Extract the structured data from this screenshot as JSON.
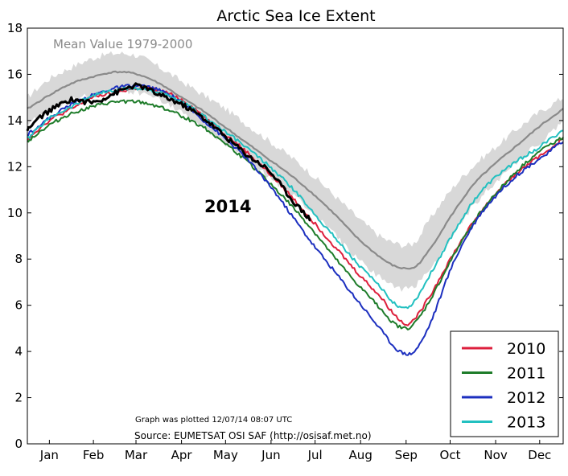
{
  "chart_data": {
    "type": "line",
    "title": "Arctic Sea Ice Extent",
    "xlabel": "",
    "ylabel": "",
    "xlim": [
      0,
      365
    ],
    "ylim": [
      0,
      18
    ],
    "yticks": [
      0,
      2,
      4,
      6,
      8,
      10,
      12,
      14,
      16,
      18
    ],
    "month_labels": [
      "Jan",
      "Feb",
      "Mar",
      "Apr",
      "May",
      "Jun",
      "Jul",
      "Aug",
      "Sep",
      "Oct",
      "Nov",
      "Dec"
    ],
    "month_label_days": [
      15,
      45,
      74,
      105,
      135,
      166,
      196,
      227,
      258,
      288,
      319,
      349
    ],
    "mean_label": "Mean Value 1979-2000",
    "mean": {
      "x": [
        0,
        15,
        30,
        45,
        60,
        75,
        90,
        105,
        120,
        135,
        150,
        165,
        180,
        195,
        210,
        225,
        240,
        250,
        258,
        265,
        275,
        290,
        305,
        320,
        335,
        350,
        365
      ],
      "y": [
        14.5,
        15.1,
        15.6,
        15.9,
        16.1,
        16.0,
        15.6,
        15.0,
        14.4,
        13.7,
        13.0,
        12.3,
        11.6,
        10.8,
        9.9,
        8.9,
        8.1,
        7.7,
        7.6,
        7.7,
        8.5,
        10.0,
        11.3,
        12.2,
        13.0,
        13.8,
        14.5
      ]
    },
    "mean_band": {
      "x": [
        0,
        15,
        30,
        45,
        60,
        75,
        90,
        105,
        120,
        135,
        150,
        165,
        180,
        195,
        210,
        225,
        240,
        250,
        258,
        265,
        275,
        290,
        305,
        320,
        335,
        350,
        365
      ],
      "upper": [
        15.0,
        15.8,
        16.3,
        16.7,
        16.9,
        16.8,
        16.3,
        15.7,
        15.1,
        14.5,
        13.8,
        13.1,
        12.4,
        11.6,
        10.7,
        9.8,
        9.0,
        8.7,
        8.6,
        8.8,
        9.8,
        11.1,
        12.1,
        12.9,
        13.7,
        14.4,
        15.0
      ],
      "lower": [
        13.9,
        14.4,
        14.9,
        15.1,
        15.3,
        15.2,
        14.9,
        14.3,
        13.7,
        13.0,
        12.3,
        11.5,
        10.8,
        10.0,
        9.0,
        8.0,
        7.2,
        6.8,
        6.7,
        6.9,
        7.6,
        9.1,
        10.4,
        11.4,
        12.3,
        13.1,
        13.9
      ]
    },
    "year_label": "2014",
    "series": [
      {
        "name": "2010",
        "color": "#dd1f3c",
        "x": [
          0,
          15,
          30,
          45,
          60,
          75,
          90,
          105,
          120,
          135,
          150,
          165,
          180,
          195,
          210,
          225,
          240,
          250,
          258,
          265,
          275,
          290,
          305,
          320,
          335,
          350,
          365
        ],
        "y": [
          13.2,
          14.0,
          14.5,
          15.0,
          15.2,
          15.4,
          15.3,
          14.9,
          14.2,
          13.4,
          12.6,
          11.7,
          10.7,
          9.6,
          8.5,
          7.4,
          6.4,
          5.6,
          5.2,
          5.5,
          6.5,
          8.2,
          9.7,
          10.9,
          11.8,
          12.5,
          13.2
        ]
      },
      {
        "name": "2011",
        "color": "#1e7c2a",
        "x": [
          0,
          15,
          30,
          45,
          60,
          75,
          90,
          105,
          120,
          135,
          150,
          165,
          180,
          195,
          210,
          225,
          240,
          250,
          258,
          265,
          275,
          290,
          305,
          320,
          335,
          350,
          365
        ],
        "y": [
          13.1,
          13.8,
          14.3,
          14.6,
          14.8,
          14.8,
          14.6,
          14.2,
          13.7,
          13.0,
          12.2,
          11.3,
          10.3,
          9.2,
          8.0,
          6.9,
          5.9,
          5.2,
          5.0,
          5.3,
          6.3,
          8.1,
          9.7,
          10.9,
          11.9,
          12.7,
          13.3
        ]
      },
      {
        "name": "2012",
        "color": "#1c2fbf",
        "x": [
          0,
          15,
          30,
          45,
          60,
          75,
          90,
          105,
          120,
          135,
          150,
          165,
          180,
          195,
          210,
          225,
          240,
          250,
          258,
          265,
          275,
          290,
          305,
          320,
          335,
          350,
          365
        ],
        "y": [
          13.4,
          14.1,
          14.7,
          15.1,
          15.4,
          15.5,
          15.3,
          14.8,
          14.0,
          13.2,
          12.3,
          11.2,
          9.9,
          8.6,
          7.4,
          6.2,
          5.0,
          4.2,
          3.9,
          4.1,
          5.3,
          7.8,
          9.6,
          10.8,
          11.7,
          12.4,
          13.1
        ]
      },
      {
        "name": "2013",
        "color": "#22c0c0",
        "x": [
          0,
          15,
          30,
          45,
          60,
          75,
          90,
          105,
          120,
          135,
          150,
          165,
          180,
          195,
          210,
          225,
          240,
          250,
          258,
          265,
          275,
          290,
          305,
          320,
          335,
          350,
          365
        ],
        "y": [
          13.2,
          14.1,
          14.6,
          15.1,
          15.3,
          15.4,
          15.2,
          14.8,
          14.2,
          13.5,
          12.8,
          12.0,
          11.1,
          10.0,
          8.9,
          7.8,
          6.8,
          6.1,
          5.9,
          6.3,
          7.4,
          9.1,
          10.6,
          11.6,
          12.3,
          12.9,
          13.6
        ]
      },
      {
        "name": "2014",
        "color": "#000000",
        "x": [
          0,
          10,
          20,
          30,
          45,
          60,
          75,
          90,
          105,
          120,
          135,
          150,
          165,
          180,
          193
        ],
        "y": [
          13.6,
          14.2,
          14.6,
          14.9,
          14.8,
          15.2,
          15.5,
          15.1,
          14.7,
          14.1,
          13.3,
          12.5,
          11.8,
          10.6,
          9.7
        ]
      }
    ],
    "legend": [
      "2010",
      "2011",
      "2012",
      "2013"
    ],
    "legend_position": "bottom-right",
    "grid": false,
    "note": "Graph was plotted 12/07/14 08:07 UTC",
    "source": "Source: EUMETSAT OSI SAF (http://osisaf.met.no)"
  }
}
